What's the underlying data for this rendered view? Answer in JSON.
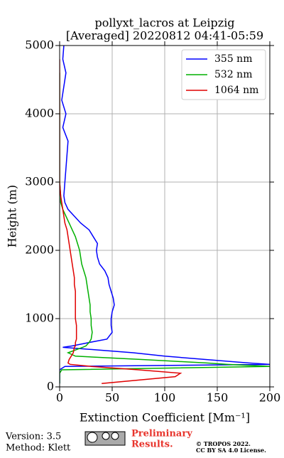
{
  "chart_data": {
    "type": "line",
    "title": "pollyxt_lacros at Leipzig",
    "subtitle": "[Averaged] 20220812 04:41-05:59",
    "xlabel": "Extinction Coefficient [Mm⁻¹]",
    "ylabel": "Height (m)",
    "xlim": [
      0,
      200
    ],
    "xticks": [
      0,
      50,
      100,
      150,
      200
    ],
    "ylim": [
      0,
      5000
    ],
    "yticks": [
      0,
      1000,
      2000,
      3000,
      4000,
      5000
    ],
    "grid": true,
    "legend": "upper right",
    "y": [
      50,
      150,
      200,
      250,
      300,
      330,
      350,
      400,
      450,
      500,
      580,
      600,
      650,
      700,
      800,
      900,
      1000,
      1100,
      1200,
      1300,
      1400,
      1500,
      1600,
      1700,
      1800,
      1900,
      2000,
      2100,
      2200,
      2300,
      2400,
      2500,
      2600,
      2700,
      2800,
      3000,
      3200,
      3400,
      3600,
      3800,
      4000,
      4200,
      4400,
      4600,
      4800,
      5000
    ],
    "series": [
      {
        "name": "355 nm",
        "color": "#0000ff",
        "values": [
          0,
          0,
          0,
          0,
          5,
          200,
          180,
          140,
          100,
          70,
          3,
          12,
          28,
          45,
          50,
          49,
          49,
          50,
          52,
          51,
          49,
          47,
          46,
          43,
          38,
          36,
          35,
          36,
          32,
          28,
          20,
          14,
          8,
          5,
          4,
          5,
          6,
          7,
          8,
          3,
          6,
          2,
          4,
          6,
          3,
          4
        ]
      },
      {
        "name": "532 nm",
        "color": "#00b000",
        "values": [
          0,
          0,
          0,
          2,
          200,
          160,
          140,
          80,
          15,
          8,
          22,
          25,
          28,
          30,
          31,
          30,
          30,
          29,
          29,
          28,
          27,
          26,
          25,
          23,
          21,
          20,
          19,
          17,
          15,
          12,
          9,
          6,
          3,
          1,
          1,
          0,
          0,
          0,
          0,
          0,
          0,
          0,
          0,
          0,
          null,
          null
        ]
      },
      {
        "name": "1064 nm",
        "color": "#e00000",
        "values": [
          40,
          110,
          115,
          75,
          30,
          10,
          8,
          9,
          11,
          13,
          14,
          15,
          15,
          16,
          16,
          16,
          15,
          15,
          15,
          15,
          15,
          14,
          14,
          13,
          12,
          11,
          10,
          9,
          8,
          7,
          5,
          4,
          3,
          2,
          1,
          0,
          0,
          0,
          0,
          0,
          0,
          0,
          0,
          0,
          0,
          null
        ]
      }
    ]
  },
  "footer": {
    "version": "Version: 3.5",
    "method": "Method: Klett",
    "preliminary": [
      "Preliminary",
      "Results."
    ],
    "copyright": "© TROPOS 2022.",
    "license": "CC BY SA 4.0 License."
  }
}
